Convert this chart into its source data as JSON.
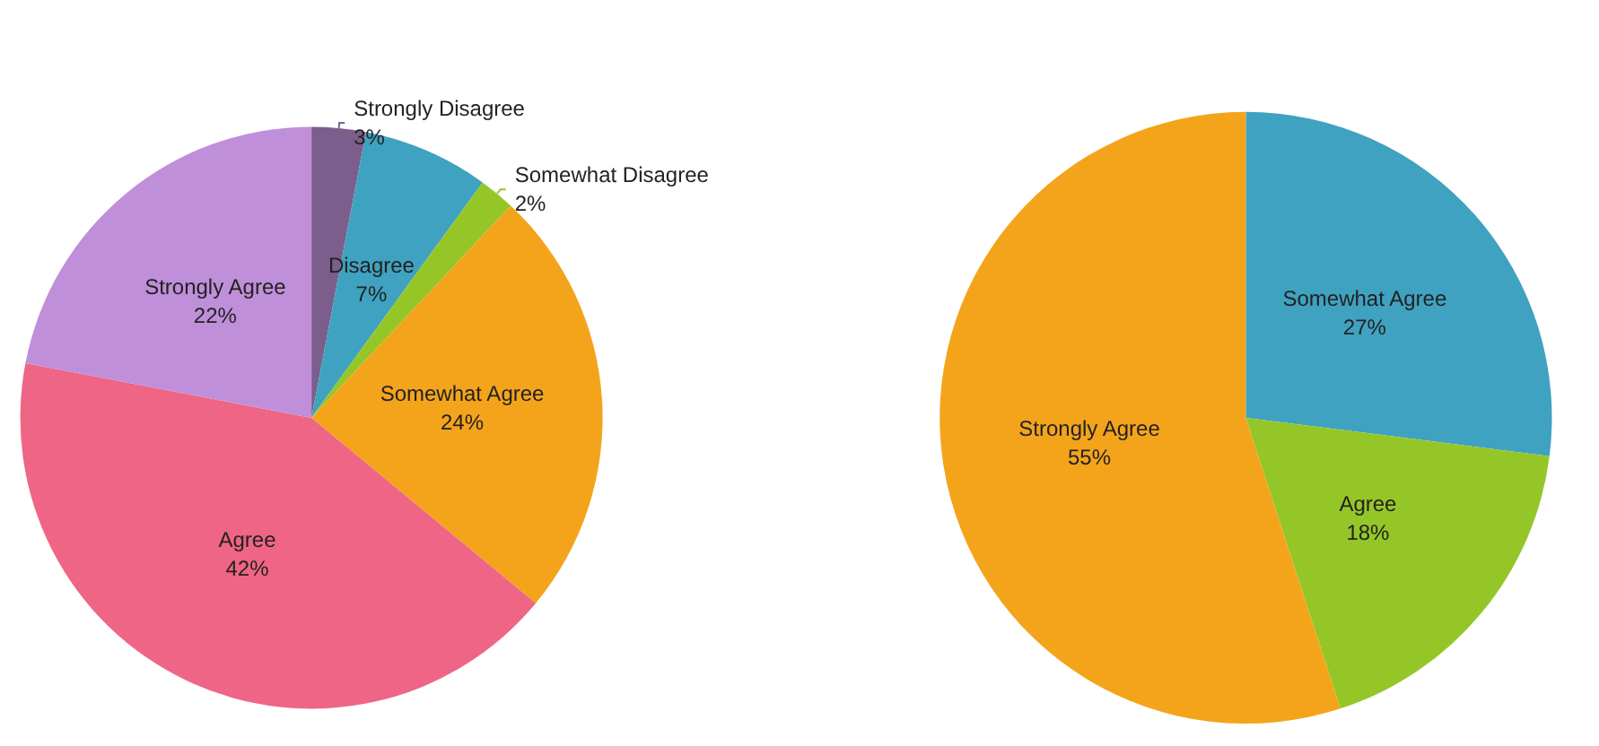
{
  "chart_data": [
    {
      "type": "pie",
      "categories": [
        "Strongly Disagree",
        "Disagree",
        "Somewhat Disagree",
        "Somewhat Agree",
        "Agree",
        "Strongly Agree"
      ],
      "values": [
        3,
        7,
        2,
        24,
        42,
        22
      ],
      "colors": [
        "#7b5e8c",
        "#3fa2c0",
        "#95c628",
        "#f4a41b",
        "#ef6586",
        "#bf8fd9"
      ],
      "value_labels": [
        "3%",
        "7%",
        "2%",
        "24%",
        "42%",
        "22%"
      ]
    },
    {
      "type": "pie",
      "categories": [
        "Somewhat Agree",
        "Agree",
        "Strongly Agree"
      ],
      "values": [
        27,
        18,
        55
      ],
      "colors": [
        "#3fa2c0",
        "#95c628",
        "#f4a41b"
      ],
      "value_labels": [
        "27%",
        "18%",
        "55%"
      ]
    }
  ]
}
